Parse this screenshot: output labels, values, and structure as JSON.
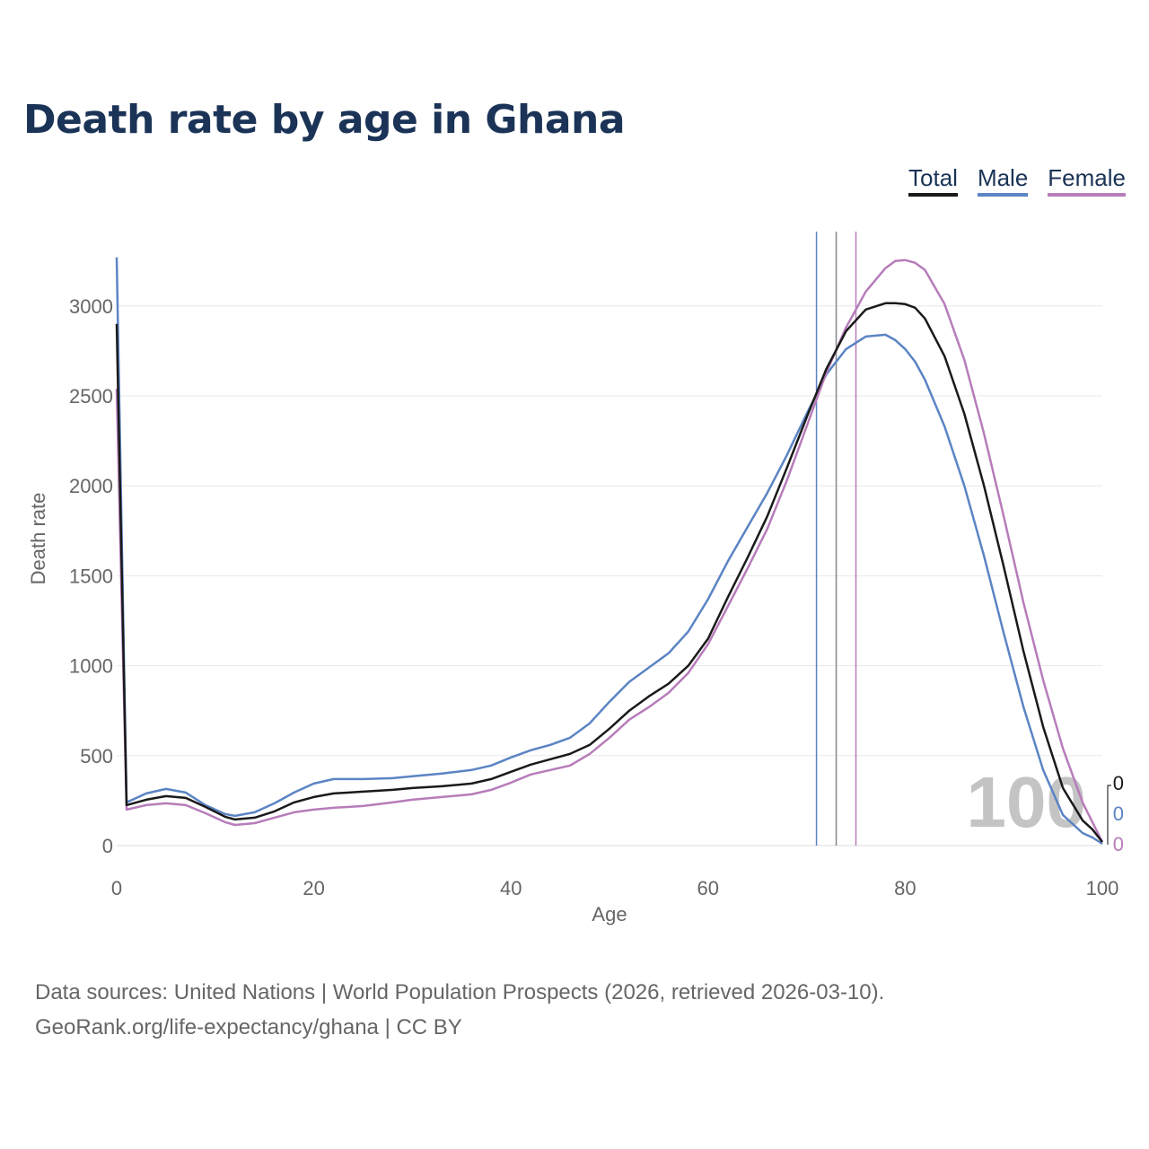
{
  "chart_data": {
    "type": "line",
    "title": "Death rate by age in Ghana",
    "xlabel": "Age",
    "ylabel": "Death rate",
    "xlim": [
      0,
      100
    ],
    "ylim": [
      0,
      3300
    ],
    "x_ticks": [
      0,
      20,
      40,
      60,
      80,
      100
    ],
    "y_ticks": [
      0,
      500,
      1000,
      1500,
      2000,
      2500,
      3000
    ],
    "x_tick_labels": [
      "0",
      "20",
      "40",
      "60",
      "80",
      "100"
    ],
    "y_tick_labels": [
      "0",
      "500",
      "1000",
      "1500",
      "2000",
      "2500",
      "3000"
    ],
    "grid": true,
    "legend_position": "top-right",
    "watermark": "100",
    "series": [
      {
        "name": "Total",
        "color": "#1a1a1a",
        "life_expectancy_marker": 73,
        "end_label": "0",
        "x": [
          0,
          1,
          3,
          5,
          7,
          9,
          11,
          12,
          14,
          16,
          18,
          20,
          22,
          25,
          28,
          30,
          33,
          36,
          38,
          40,
          42,
          44,
          46,
          48,
          50,
          52,
          54,
          56,
          58,
          60,
          62,
          64,
          66,
          68,
          70,
          72,
          74,
          76,
          78,
          79,
          80,
          81,
          82,
          84,
          86,
          88,
          90,
          92,
          94,
          96,
          98,
          99,
          100
        ],
        "values": [
          2900,
          225,
          255,
          275,
          265,
          215,
          160,
          145,
          155,
          190,
          240,
          270,
          290,
          300,
          310,
          320,
          330,
          345,
          370,
          410,
          450,
          480,
          510,
          560,
          650,
          750,
          830,
          900,
          1000,
          1150,
          1380,
          1600,
          1830,
          2100,
          2380,
          2650,
          2860,
          2980,
          3015,
          3015,
          3010,
          2990,
          2930,
          2720,
          2400,
          2000,
          1550,
          1080,
          660,
          320,
          140,
          90,
          20
        ]
      },
      {
        "name": "Male",
        "color": "#5b84c4",
        "life_expectancy_marker": 71,
        "end_label": "0",
        "x": [
          0,
          1,
          3,
          5,
          7,
          9,
          11,
          12,
          14,
          16,
          18,
          20,
          22,
          25,
          28,
          30,
          33,
          36,
          38,
          40,
          42,
          44,
          46,
          48,
          50,
          52,
          54,
          56,
          58,
          60,
          62,
          64,
          66,
          68,
          70,
          72,
          74,
          76,
          78,
          79,
          80,
          81,
          82,
          84,
          86,
          88,
          90,
          92,
          94,
          96,
          98,
          99,
          100
        ],
        "values": [
          3270,
          240,
          290,
          315,
          295,
          225,
          175,
          165,
          185,
          235,
          295,
          345,
          370,
          370,
          375,
          385,
          400,
          420,
          445,
          490,
          530,
          560,
          600,
          680,
          800,
          910,
          990,
          1070,
          1190,
          1370,
          1580,
          1770,
          1960,
          2170,
          2400,
          2620,
          2760,
          2830,
          2840,
          2810,
          2760,
          2690,
          2590,
          2330,
          2000,
          1610,
          1180,
          770,
          420,
          170,
          70,
          45,
          10
        ]
      },
      {
        "name": "Female",
        "color": "#b77cba",
        "life_expectancy_marker": 75,
        "end_label": "0",
        "x": [
          0,
          1,
          3,
          5,
          7,
          9,
          11,
          12,
          14,
          16,
          18,
          20,
          22,
          25,
          28,
          30,
          33,
          36,
          38,
          40,
          42,
          44,
          46,
          48,
          50,
          52,
          54,
          56,
          58,
          60,
          62,
          64,
          66,
          68,
          70,
          72,
          74,
          76,
          78,
          79,
          80,
          81,
          82,
          84,
          86,
          88,
          90,
          92,
          94,
          96,
          98,
          99,
          100
        ],
        "values": [
          2540,
          200,
          225,
          235,
          225,
          180,
          130,
          115,
          125,
          155,
          185,
          200,
          210,
          220,
          240,
          255,
          270,
          285,
          310,
          350,
          395,
          420,
          445,
          510,
          600,
          700,
          770,
          850,
          960,
          1120,
          1330,
          1540,
          1760,
          2030,
          2330,
          2630,
          2880,
          3080,
          3210,
          3250,
          3255,
          3240,
          3200,
          3010,
          2700,
          2290,
          1830,
          1350,
          920,
          540,
          240,
          130,
          20
        ]
      }
    ]
  },
  "legend": {
    "total_label": "Total",
    "male_label": "Male",
    "female_label": "Female"
  },
  "footer": {
    "line1": "Data sources: United Nations | World Population Prospects (2026, retrieved 2026-03-10).",
    "line2": "GeoRank.org/life-expectancy/ghana | CC BY"
  }
}
